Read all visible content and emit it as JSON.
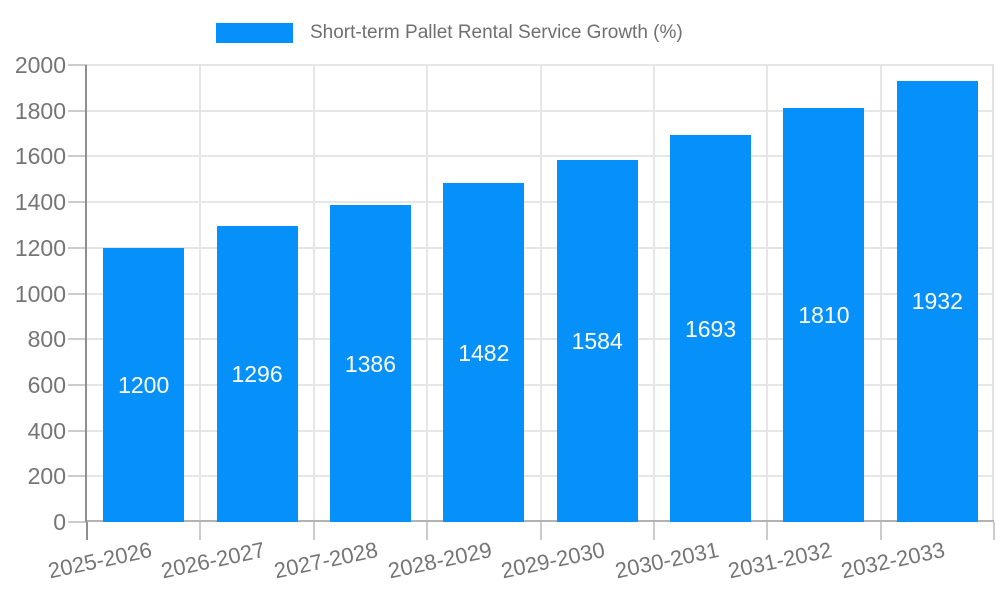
{
  "legend": {
    "label": "Short-term Pallet Rental Service Growth (%)"
  },
  "colors": {
    "bar": "#0590fa",
    "bar_label": "#ffffff",
    "axis_text": "#757575",
    "legend_text": "#6f6f6f",
    "gridline": "#e6e6e6",
    "y_axis_line": "#8f8f8f",
    "x_axis_line": "#b2b2b2",
    "plot_right_border": "#e2e2e2",
    "tick": "#cccccc",
    "background": "#ffffff"
  },
  "chart_data": {
    "type": "bar",
    "title": "Short-term Pallet Rental Service Growth (%)",
    "categories": [
      "2025-2026",
      "2026-2027",
      "2027-2028",
      "2028-2029",
      "2029-2030",
      "2030-2031",
      "2031-2032",
      "2032-2033"
    ],
    "values": [
      1200,
      1296,
      1386,
      1482,
      1584,
      1693,
      1810,
      1932
    ],
    "value_labels_shown": true,
    "value_label_position": "inside-center",
    "xlabel": "",
    "ylabel": "",
    "ylim": [
      0,
      2000
    ],
    "yticks": [
      0,
      200,
      400,
      600,
      800,
      1000,
      1200,
      1400,
      1600,
      1800,
      2000
    ],
    "grid": true,
    "legend_position": "top",
    "x_label_rotation_deg": -12
  }
}
